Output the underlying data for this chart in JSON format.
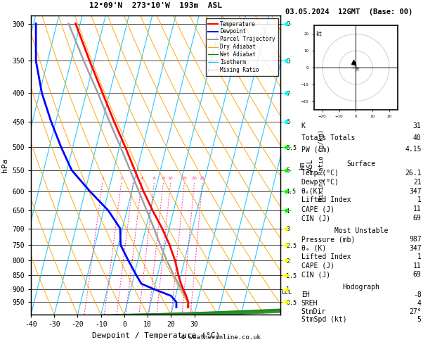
{
  "title_left": "12°09'N  273°10'W  193m  ASL",
  "title_right": "03.05.2024  12GMT  (Base: 00)",
  "xlabel": "Dewpoint / Temperature (°C)",
  "ylabel_left": "hPa",
  "isotherm_color": "#00bfff",
  "dry_adiabat_color": "#ffa500",
  "wet_adiabat_color": "#228b22",
  "mixing_ratio_color": "#ff1493",
  "temp_profile_color": "#ff0000",
  "dewp_profile_color": "#0000ff",
  "parcel_color": "#a0a0a0",
  "temperature_profile": {
    "pressure": [
      970,
      950,
      925,
      900,
      880,
      850,
      800,
      750,
      700,
      650,
      600,
      550,
      500,
      450,
      400,
      350,
      300
    ],
    "temp": [
      26.5,
      26.1,
      24.5,
      22.5,
      21.0,
      19.0,
      16.0,
      12.0,
      7.0,
      1.0,
      -5.0,
      -11.0,
      -17.5,
      -25.0,
      -33.0,
      -42.0,
      -52.0
    ]
  },
  "dewpoint_profile": {
    "pressure": [
      970,
      950,
      925,
      900,
      880,
      850,
      800,
      750,
      700,
      650,
      600,
      550,
      500,
      450,
      400,
      350,
      300
    ],
    "temp": [
      21.5,
      21,
      18.0,
      10.0,
      4.0,
      1.0,
      -4.0,
      -9.0,
      -11.0,
      -18.0,
      -28.0,
      -38.0,
      -45.0,
      -52.0,
      -59.0,
      -65.0,
      -69.0
    ]
  },
  "parcel_profile": {
    "pressure": [
      970,
      950,
      900,
      850,
      800,
      750,
      700,
      650,
      600,
      550,
      500,
      450,
      400,
      350,
      300
    ],
    "temp": [
      26.5,
      26.1,
      21.8,
      17.0,
      12.5,
      8.0,
      3.5,
      -1.5,
      -7.0,
      -13.0,
      -19.5,
      -27.0,
      -35.0,
      -44.5,
      -55.0
    ]
  },
  "lcl_pressure": 912,
  "mixing_ratios": [
    1,
    2,
    3,
    4,
    6,
    8,
    10,
    15,
    20,
    25
  ],
  "km_ticks": {
    "pressures": [
      950,
      900,
      850,
      800,
      750,
      700,
      650,
      600,
      550,
      500,
      450,
      400,
      350,
      300
    ],
    "km_values": [
      0.5,
      1,
      1.5,
      2,
      2.5,
      3,
      4,
      4.5,
      5,
      5.5,
      6,
      7,
      8,
      9
    ]
  },
  "info_panel": {
    "K": 31,
    "Totals_Totals": 40,
    "PW_cm": 4.15,
    "Surface_Temp": 26.1,
    "Surface_Dewp": 21,
    "Surface_theta_e": 347,
    "Surface_LI": 1,
    "Surface_CAPE": 11,
    "Surface_CIN": 69,
    "MU_Pressure": 987,
    "MU_theta_e": 347,
    "MU_LI": 1,
    "MU_CAPE": 11,
    "MU_CIN": 69,
    "EH": -8,
    "SREH": 4,
    "StmDir": 27,
    "StmSpd": 5
  },
  "copyright": "© weatheronline.co.uk",
  "wind_levels": {
    "pressure": [
      950,
      900,
      850,
      800,
      750,
      700,
      650,
      600,
      550,
      500,
      450,
      400,
      350,
      300
    ],
    "colors": [
      "#ffff00",
      "#ffff00",
      "#ffff00",
      "#ffff00",
      "#ffff00",
      "#ffff00",
      "#00ff00",
      "#00ff00",
      "#00ff00",
      "#00ff00",
      "#00ffff",
      "#00ffff",
      "#00ffff",
      "#00ffff"
    ]
  }
}
